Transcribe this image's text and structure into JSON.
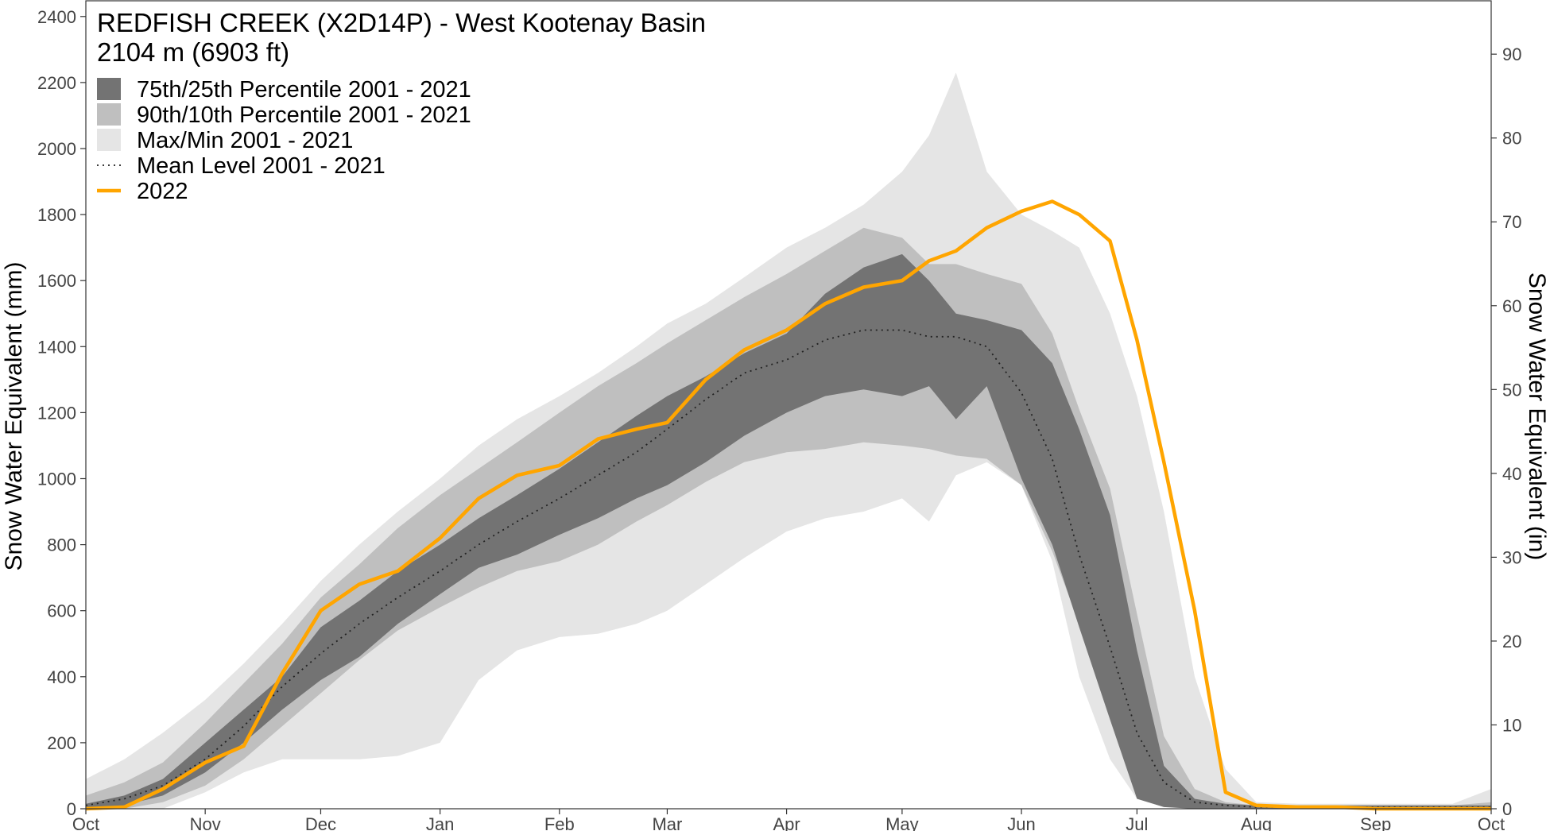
{
  "chart_data": {
    "type": "area",
    "title": "REDFISH CREEK (X2D14P) - West Kootenay Basin",
    "subtitle": "2104 m (6903 ft)",
    "ylabel": "Snow Water Equivalent (mm)",
    "ylabel_right": "Snow Water Equivalent (in)",
    "ylim": [
      0,
      2450
    ],
    "ylim_right_in": [
      0,
      96.46
    ],
    "yticks": [
      0,
      200,
      400,
      600,
      800,
      1000,
      1200,
      1400,
      1600,
      1800,
      2000,
      2200,
      2400
    ],
    "yticks_right": [
      0,
      10,
      20,
      30,
      40,
      50,
      60,
      70,
      80,
      90
    ],
    "xlim_days": [
      0,
      365
    ],
    "xticks": [
      {
        "day": 0,
        "label": "Oct"
      },
      {
        "day": 31,
        "label": "Nov"
      },
      {
        "day": 61,
        "label": "Dec"
      },
      {
        "day": 92,
        "label": "Jan"
      },
      {
        "day": 123,
        "label": "Feb"
      },
      {
        "day": 151,
        "label": "Mar"
      },
      {
        "day": 182,
        "label": "Apr"
      },
      {
        "day": 212,
        "label": "May"
      },
      {
        "day": 243,
        "label": "Jun"
      },
      {
        "day": 273,
        "label": "Jul"
      },
      {
        "day": 304,
        "label": "Aug"
      },
      {
        "day": 335,
        "label": "Sep"
      },
      {
        "day": 365,
        "label": "Oct"
      }
    ],
    "grid": false,
    "legend_position": "top-left",
    "legend": [
      {
        "label": "75th/25th Percentile 2001 - 2021",
        "kind": "box",
        "color": "#737373"
      },
      {
        "label": "90th/10th Percentile 2001 - 2021",
        "kind": "box",
        "color": "#bfbfbf"
      },
      {
        "label": "Max/Min 2001 - 2021",
        "kind": "box",
        "color": "#e5e5e5"
      },
      {
        "label": "Mean Level 2001 - 2021",
        "kind": "dotted",
        "color": "#000000"
      },
      {
        "label": "2022",
        "kind": "line",
        "color": "#ffa500"
      }
    ],
    "x": [
      0,
      10,
      20,
      31,
      41,
      51,
      61,
      71,
      81,
      92,
      102,
      112,
      123,
      133,
      143,
      151,
      161,
      171,
      182,
      192,
      202,
      212,
      219,
      226,
      234,
      243,
      251,
      258,
      266,
      273,
      280,
      288,
      296,
      304,
      315,
      325,
      335,
      345,
      355,
      365
    ],
    "series": [
      {
        "name": "Max/Min 2001 - 2021",
        "kind": "band",
        "upper": [
          90,
          150,
          230,
          330,
          440,
          560,
          690,
          800,
          900,
          1000,
          1100,
          1180,
          1250,
          1320,
          1400,
          1470,
          1530,
          1610,
          1700,
          1760,
          1830,
          1930,
          2040,
          2230,
          1930,
          1800,
          1750,
          1700,
          1500,
          1250,
          900,
          400,
          120,
          20,
          15,
          15,
          15,
          15,
          15,
          60
        ],
        "lower": [
          0,
          0,
          0,
          50,
          110,
          150,
          150,
          150,
          160,
          200,
          390,
          480,
          520,
          530,
          560,
          600,
          680,
          760,
          840,
          880,
          900,
          940,
          870,
          1010,
          1050,
          980,
          750,
          400,
          150,
          30,
          5,
          0,
          0,
          0,
          0,
          0,
          0,
          0,
          0,
          0
        ]
      },
      {
        "name": "90th/10th Percentile 2001 - 2021",
        "kind": "band",
        "upper": [
          40,
          80,
          140,
          260,
          380,
          500,
          640,
          740,
          850,
          950,
          1030,
          1110,
          1200,
          1280,
          1350,
          1410,
          1480,
          1550,
          1620,
          1690,
          1760,
          1730,
          1650,
          1650,
          1620,
          1590,
          1440,
          1210,
          970,
          590,
          220,
          60,
          20,
          10,
          10,
          10,
          10,
          10,
          10,
          20
        ],
        "lower": [
          0,
          0,
          20,
          70,
          150,
          250,
          350,
          450,
          540,
          610,
          670,
          720,
          750,
          800,
          870,
          920,
          990,
          1050,
          1080,
          1090,
          1110,
          1100,
          1090,
          1070,
          1060,
          980,
          780,
          560,
          290,
          90,
          20,
          5,
          0,
          0,
          0,
          0,
          0,
          0,
          0,
          0
        ]
      },
      {
        "name": "75th/25th Percentile 2001 - 2021",
        "kind": "band",
        "upper": [
          15,
          40,
          90,
          200,
          300,
          400,
          550,
          630,
          720,
          800,
          880,
          950,
          1030,
          1110,
          1190,
          1250,
          1310,
          1380,
          1440,
          1560,
          1640,
          1680,
          1600,
          1500,
          1480,
          1450,
          1350,
          1150,
          890,
          480,
          130,
          30,
          15,
          10,
          10,
          10,
          10,
          10,
          10,
          10
        ],
        "lower": [
          0,
          10,
          40,
          110,
          200,
          300,
          390,
          460,
          560,
          650,
          730,
          770,
          830,
          880,
          940,
          980,
          1050,
          1130,
          1200,
          1250,
          1270,
          1250,
          1280,
          1180,
          1280,
          1000,
          800,
          550,
          270,
          30,
          5,
          0,
          0,
          0,
          0,
          0,
          0,
          0,
          0,
          0
        ]
      },
      {
        "name": "Mean Level 2001 - 2021",
        "kind": "dotted",
        "values": [
          10,
          30,
          70,
          150,
          250,
          370,
          470,
          560,
          640,
          720,
          800,
          870,
          940,
          1010,
          1080,
          1150,
          1240,
          1320,
          1360,
          1420,
          1450,
          1450,
          1430,
          1430,
          1400,
          1260,
          1060,
          770,
          490,
          230,
          80,
          20,
          10,
          5,
          5,
          5,
          5,
          5,
          5,
          5
        ]
      },
      {
        "name": "2022",
        "kind": "line",
        "values": [
          0,
          5,
          60,
          140,
          190,
          410,
          600,
          680,
          720,
          820,
          940,
          1010,
          1040,
          1120,
          1150,
          1170,
          1300,
          1390,
          1450,
          1530,
          1580,
          1600,
          1660,
          1690,
          1760,
          1810,
          1840,
          1800,
          1720,
          1420,
          1050,
          600,
          50,
          10,
          5,
          5,
          0,
          0,
          0,
          0
        ]
      }
    ]
  }
}
